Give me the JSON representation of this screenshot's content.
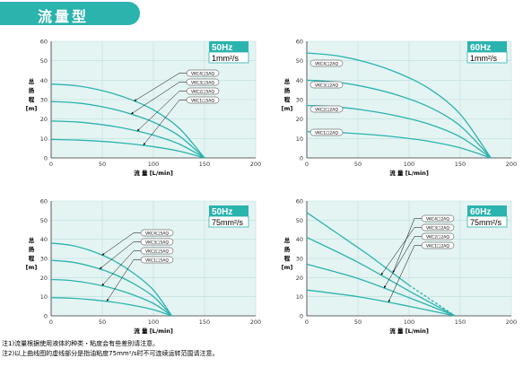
{
  "header": {
    "title": "流量型"
  },
  "notes": [
    "注1)流量根据使用液体的种类・粘度会有些差别请注意。",
    "注2)以上曲线图的虚线部分是指油粘度75mm²/s时不可连续运转范围请注意。"
  ],
  "colors": {
    "curve": "#2bb3ae",
    "badge_hz": "#2bb3ae",
    "title_bar": "#2bb3ae",
    "chart_bg": "#e4f4f3",
    "grid": "#bcdedb"
  },
  "chart_data": [
    {
      "type": "line",
      "badge": {
        "hz": "50Hz",
        "viscosity": "1mm²/s"
      },
      "xlabel": "流 量 [L/min]",
      "ylabel": "总扬程[m]",
      "xlim": [
        0,
        200
      ],
      "ylim": [
        0,
        60
      ],
      "xticks": [
        0,
        50,
        100,
        150,
        200
      ],
      "yticks": [
        0,
        10,
        20,
        30,
        40,
        50,
        60
      ],
      "grid": true,
      "series": [
        {
          "name": "VKC4□5AQ",
          "x": [
            0,
            25,
            50,
            75,
            100,
            125,
            150
          ],
          "y": [
            38,
            37.1,
            34.6,
            30.6,
            24.7,
            15.4,
            0
          ]
        },
        {
          "name": "VKC3□5AQ",
          "x": [
            0,
            25,
            50,
            75,
            100,
            125,
            150
          ],
          "y": [
            29,
            28.3,
            26.3,
            23.1,
            18.4,
            11.4,
            0
          ]
        },
        {
          "name": "VKC2□5AQ",
          "x": [
            0,
            25,
            50,
            75,
            100,
            125,
            150
          ],
          "y": [
            19,
            18.5,
            17.1,
            14.9,
            11.7,
            7.2,
            0
          ]
        },
        {
          "name": "VKC1□5AQ",
          "x": [
            0,
            25,
            50,
            75,
            100,
            125,
            150
          ],
          "y": [
            9.5,
            9.2,
            8.5,
            7.4,
            5.8,
            3.5,
            0
          ]
        }
      ]
    },
    {
      "type": "line",
      "badge": {
        "hz": "60Hz",
        "viscosity": "1mm²/s"
      },
      "xlabel": "流 量 [L/min]",
      "ylabel": "总扬程[m]",
      "xlim": [
        0,
        200
      ],
      "ylim": [
        0,
        60
      ],
      "xticks": [
        0,
        50,
        100,
        150,
        200
      ],
      "yticks": [
        0,
        10,
        20,
        30,
        40,
        50,
        60
      ],
      "grid": true,
      "series": [
        {
          "name": "VKC4□2AQ",
          "x": [
            0,
            30,
            60,
            90,
            120,
            150,
            180
          ],
          "y": [
            54,
            52.5,
            49,
            43.5,
            35.5,
            22.5,
            0
          ]
        },
        {
          "name": "VKC3□2AQ",
          "x": [
            0,
            30,
            60,
            90,
            120,
            150,
            180
          ],
          "y": [
            40,
            38.9,
            36.2,
            32.1,
            26.1,
            16.5,
            0
          ]
        },
        {
          "name": "VKC2□2AQ",
          "x": [
            0,
            30,
            60,
            90,
            120,
            150,
            180
          ],
          "y": [
            27,
            26.2,
            24.3,
            21.4,
            17.3,
            10.8,
            0
          ]
        },
        {
          "name": "VKC1□2AQ",
          "x": [
            0,
            30,
            60,
            90,
            120,
            150,
            180
          ],
          "y": [
            13.5,
            13.1,
            12.1,
            10.6,
            8.5,
            5.2,
            0
          ]
        }
      ]
    },
    {
      "type": "line",
      "badge": {
        "hz": "50Hz",
        "viscosity": "75mm²/s"
      },
      "xlabel": "流 量 [L/min]",
      "ylabel": "总扬程[m]",
      "xlim": [
        0,
        200
      ],
      "ylim": [
        0,
        60
      ],
      "xticks": [
        0,
        50,
        100,
        150,
        200
      ],
      "yticks": [
        0,
        10,
        20,
        30,
        40,
        50,
        60
      ],
      "grid": true,
      "series": [
        {
          "name": "VKC4□5AQ",
          "x": [
            0,
            20,
            40,
            60,
            80,
            100,
            118
          ],
          "y": [
            38,
            36.8,
            33.8,
            29.2,
            22.5,
            13.5,
            0
          ]
        },
        {
          "name": "VKC3□5AQ",
          "x": [
            0,
            20,
            40,
            60,
            80,
            100,
            118
          ],
          "y": [
            29,
            28.1,
            25.7,
            22.1,
            17,
            10.1,
            0
          ]
        },
        {
          "name": "VKC2□5AQ",
          "x": [
            0,
            20,
            40,
            60,
            80,
            100,
            118
          ],
          "y": [
            19,
            18.4,
            16.8,
            14.4,
            11,
            6.5,
            0
          ]
        },
        {
          "name": "VKC1□5AQ",
          "x": [
            0,
            20,
            40,
            60,
            80,
            100,
            118
          ],
          "y": [
            9.5,
            9.2,
            8.4,
            7.2,
            5.5,
            3.2,
            0
          ]
        }
      ]
    },
    {
      "type": "line",
      "badge": {
        "hz": "60Hz",
        "viscosity": "75mm²/s"
      },
      "xlabel": "流 量 [L/min]",
      "ylabel": "总扬程[m]",
      "xlim": [
        0,
        200
      ],
      "ylim": [
        0,
        60
      ],
      "xticks": [
        0,
        50,
        100,
        150,
        200
      ],
      "yticks": [
        0,
        10,
        20,
        30,
        40,
        50,
        60
      ],
      "grid": true,
      "series": [
        {
          "name": "VKC4□2AQ",
          "x": [
            0,
            60,
            100,
            145
          ],
          "y": [
            54,
            32,
            16,
            0
          ],
          "dashed_from": 2
        },
        {
          "name": "VKC3□2AQ",
          "x": [
            0,
            50,
            100,
            145
          ],
          "y": [
            41,
            28,
            13,
            0
          ]
        },
        {
          "name": "VKC2□2AQ",
          "x": [
            0,
            50,
            100,
            145
          ],
          "y": [
            27,
            19.5,
            9.5,
            0
          ]
        },
        {
          "name": "VKC1□2AQ",
          "x": [
            0,
            50,
            100,
            145
          ],
          "y": [
            13.5,
            10,
            5,
            0
          ]
        }
      ]
    }
  ]
}
